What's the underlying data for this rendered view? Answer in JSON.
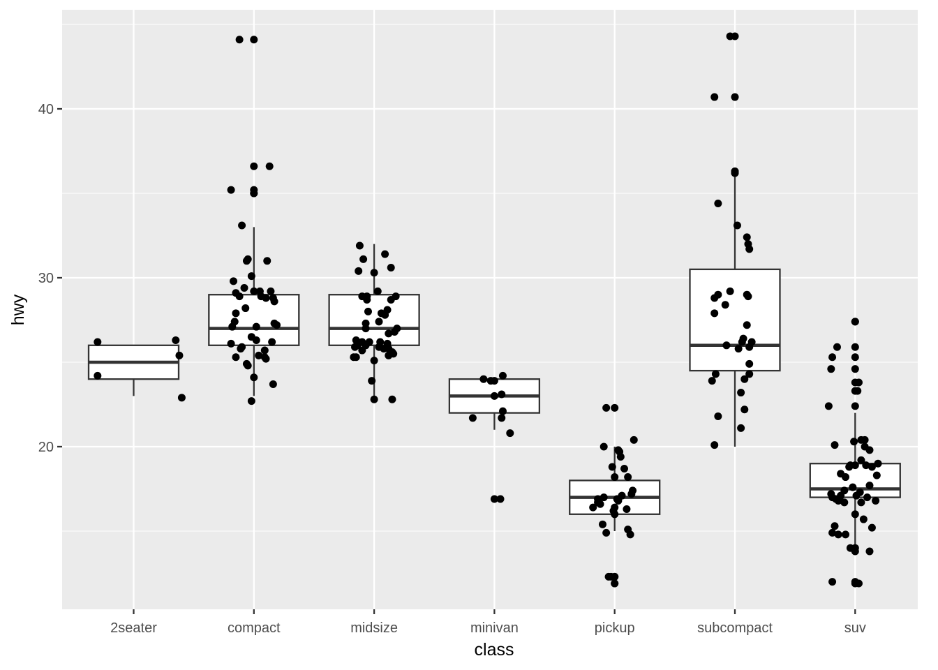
{
  "chart_data": {
    "type": "boxplot",
    "xlabel": "class",
    "ylabel": "hwy",
    "ylim": [
      11,
      45.5
    ],
    "yticks": [
      20,
      30,
      40
    ],
    "y_minor_ticks": [
      15,
      25,
      35,
      45
    ],
    "grid": true,
    "categories": [
      "2seater",
      "compact",
      "midsize",
      "minivan",
      "pickup",
      "subcompact",
      "suv"
    ],
    "boxes": [
      {
        "category": "2seater",
        "whisker_low": 23,
        "q1": 24,
        "median": 25,
        "q3": 26,
        "whisker_high": 26
      },
      {
        "category": "compact",
        "whisker_low": 23,
        "q1": 26,
        "median": 27,
        "q3": 29,
        "whisker_high": 33
      },
      {
        "category": "midsize",
        "whisker_low": 23,
        "q1": 26,
        "median": 27,
        "q3": 29,
        "whisker_high": 32
      },
      {
        "category": "minivan",
        "whisker_low": 21,
        "q1": 22,
        "median": 23,
        "q3": 24,
        "whisker_high": 24
      },
      {
        "category": "pickup",
        "whisker_low": 15,
        "q1": 16,
        "median": 17,
        "q3": 18,
        "whisker_high": 20
      },
      {
        "category": "subcompact",
        "whisker_low": 20,
        "q1": 24.5,
        "median": 26,
        "q3": 30.5,
        "whisker_high": 36
      },
      {
        "category": "suv",
        "whisker_low": 14,
        "q1": 17,
        "median": 17.5,
        "q3": 19,
        "whisker_high": 22
      }
    ],
    "points": [
      {
        "category": "2seater",
        "values": [
          26.2,
          26.3,
          24.2,
          25.4,
          22.9
        ],
        "offsets": [
          -0.3,
          0.35,
          -0.3,
          0.38,
          0.4
        ]
      },
      {
        "category": "compact",
        "values": [
          44.1,
          36.6,
          35.2,
          35.0,
          33.1,
          31.1,
          31.0,
          31.0,
          30.1,
          29.8,
          29.4,
          29.2,
          29.2,
          29.2,
          29.1,
          28.9,
          28.9,
          28.8,
          28.8,
          28.6,
          28.2,
          27.9,
          27.4,
          27.3,
          27.2,
          27.1,
          27.1,
          26.5,
          26.3,
          26.2,
          26.1,
          25.9,
          25.8,
          25.7,
          25.4,
          25.3,
          25.3,
          25.2,
          24.9,
          24.8,
          24.1,
          23.7,
          22.7
        ],
        "offsets": [
          -0.12,
          0.13,
          -0.19,
          0.0,
          -0.1,
          -0.05,
          -0.06,
          0.11,
          -0.02,
          -0.17,
          -0.08,
          0.0,
          0.05,
          0.14,
          -0.15,
          -0.12,
          0.06,
          0.1,
          0.16,
          0.17,
          -0.07,
          -0.15,
          -0.16,
          0.17,
          0.19,
          -0.18,
          0.02,
          -0.02,
          0.02,
          0.15,
          -0.19,
          -0.1,
          -0.11,
          0.09,
          0.04,
          0.09,
          -0.15,
          0.1,
          -0.06,
          -0.05,
          0.0,
          0.16,
          -0.02
        ],
        "outliers": [
          0,
          1,
          2,
          3
        ]
      },
      {
        "category": "midsize",
        "values": [
          31.9,
          31.4,
          31.1,
          30.6,
          30.4,
          30.3,
          29.2,
          28.9,
          28.9,
          28.9,
          28.7,
          28.7,
          28.1,
          28.0,
          27.9,
          27.8,
          27.4,
          27.3,
          27.0,
          27.0,
          26.8,
          26.7,
          26.3,
          26.2,
          26.2,
          26.2,
          26.1,
          26.0,
          26.0,
          25.9,
          25.9,
          25.8,
          25.8,
          25.7,
          25.6,
          25.5,
          25.4,
          25.3,
          25.3,
          25.1,
          23.9,
          22.8
        ],
        "offsets": [
          -0.12,
          0.09,
          -0.09,
          0.14,
          -0.13,
          0.0,
          0.03,
          -0.1,
          0.18,
          -0.06,
          0.14,
          -0.06,
          0.11,
          -0.05,
          0.06,
          0.09,
          0.04,
          -0.07,
          -0.07,
          0.19,
          0.17,
          0.12,
          -0.15,
          -0.1,
          -0.04,
          0.05,
          0.11,
          -0.14,
          -0.07,
          -0.16,
          0.04,
          0.08,
          0.12,
          -0.1,
          0.15,
          0.16,
          0.12,
          -0.17,
          -0.15,
          0.0,
          -0.02,
          0.15
        ],
        "outliers": [
          41
        ]
      },
      {
        "category": "minivan",
        "values": [
          24.2,
          24.0,
          23.9,
          23.9,
          23.0,
          23.1,
          22.1,
          21.7,
          21.7,
          20.8,
          16.9
        ],
        "offsets": [
          0.07,
          -0.09,
          -0.03,
          0.0,
          0.0,
          0.06,
          0.07,
          -0.18,
          0.06,
          0.13,
          0.05
        ],
        "outliers": [
          10
        ]
      },
      {
        "category": "pickup",
        "values": [
          22.3,
          20.4,
          20.0,
          19.8,
          19.7,
          19.4,
          18.8,
          18.7,
          18.2,
          18.2,
          17.4,
          17.2,
          17.1,
          17.0,
          16.9,
          16.9,
          16.8,
          16.7,
          16.6,
          16.4,
          16.4,
          16.3,
          16.2,
          16.0,
          15.4,
          15.1,
          14.9,
          14.8,
          12.3,
          12.3,
          11.9
        ],
        "offsets": [
          -0.07,
          0.16,
          -0.09,
          0.03,
          0.04,
          0.05,
          -0.02,
          0.08,
          0.0,
          0.11,
          0.15,
          0.14,
          0.06,
          -0.09,
          0.02,
          -0.14,
          0.03,
          -0.14,
          -0.12,
          -0.18,
          0.0,
          0.1,
          -0.01,
          0.0,
          -0.1,
          0.11,
          -0.07,
          0.13,
          -0.05,
          -0.03,
          0.0
        ],
        "outliers": [
          0,
          28,
          29,
          30
        ]
      },
      {
        "category": "subcompact",
        "values": [
          44.3,
          40.7,
          36.3,
          36.2,
          34.4,
          33.1,
          32.4,
          32.0,
          31.7,
          29.2,
          29.0,
          29.0,
          28.9,
          28.8,
          28.4,
          27.9,
          27.2,
          26.4,
          26.2,
          26.2,
          26.0,
          25.9,
          25.8,
          24.9,
          24.3,
          24.3,
          24.0,
          23.9,
          23.2,
          22.2,
          21.8,
          21.1,
          20.1
        ],
        "offsets": [
          -0.04,
          -0.17,
          0.0,
          0.0,
          -0.14,
          0.02,
          0.1,
          0.11,
          0.12,
          -0.04,
          -0.14,
          0.1,
          0.11,
          -0.17,
          -0.08,
          -0.17,
          0.1,
          0.07,
          0.06,
          0.14,
          -0.07,
          0.12,
          0.03,
          0.12,
          -0.16,
          0.12,
          0.08,
          -0.19,
          0.05,
          0.08,
          -0.14,
          0.05,
          -0.17
        ],
        "outliers": [
          0,
          1,
          2,
          3
        ]
      },
      {
        "category": "suv",
        "values": [
          27.4,
          25.9,
          25.3,
          24.6,
          23.8,
          23.3,
          22.4,
          20.4,
          20.4,
          20.3,
          20.1,
          20.0,
          19.8,
          19.2,
          19.0,
          18.9,
          18.9,
          18.9,
          18.8,
          18.8,
          18.4,
          18.3,
          18.2,
          17.7,
          17.6,
          17.4,
          17.3,
          17.2,
          17.1,
          17.1,
          17.0,
          17.0,
          16.9,
          16.9,
          16.8,
          16.8,
          16.7,
          16.7,
          16.0,
          15.7,
          15.3,
          15.2,
          14.9,
          14.8,
          14.8,
          14.0,
          13.8,
          12.0,
          11.9
        ],
        "offsets": [
          0.0,
          -0.15,
          -0.19,
          -0.2,
          0.03,
          0.02,
          -0.22,
          0.05,
          0.08,
          -0.01,
          -0.17,
          0.08,
          0.12,
          0.05,
          0.19,
          0.09,
          -0.04,
          0.0,
          -0.05,
          0.14,
          -0.12,
          0.18,
          -0.08,
          0.12,
          -0.02,
          -0.09,
          0.04,
          -0.2,
          -0.12,
          0.01,
          -0.19,
          0.1,
          -0.13,
          -0.16,
          -0.14,
          0.17,
          -0.09,
          0.05,
          0.0,
          0.07,
          -0.17,
          0.14,
          -0.19,
          -0.08,
          -0.14,
          -0.04,
          0.12,
          -0.19,
          0.03
        ],
        "outliers": [
          0,
          1,
          2,
          3,
          4,
          5,
          6,
          45,
          46,
          47,
          48
        ]
      }
    ]
  }
}
